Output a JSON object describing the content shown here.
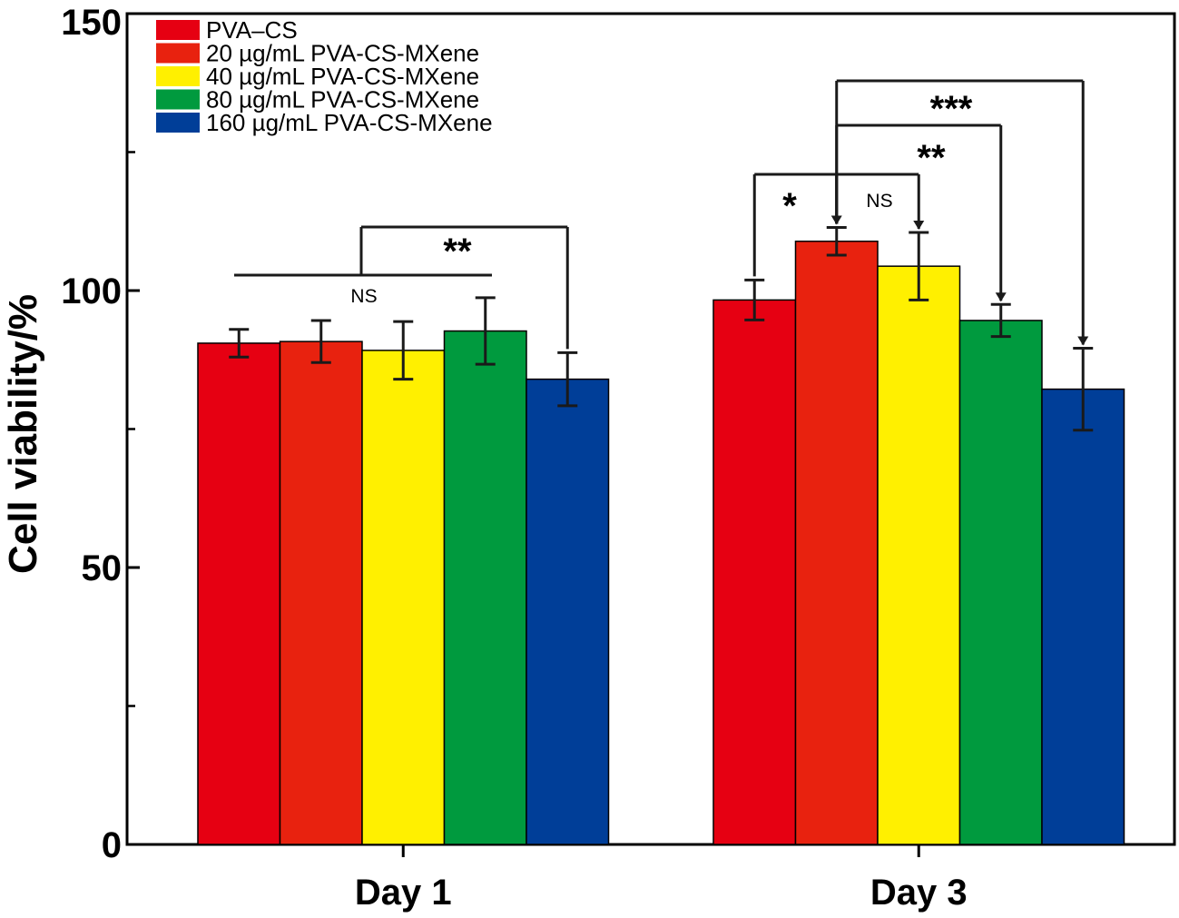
{
  "chart_data": {
    "type": "bar",
    "title": "",
    "xlabel": "",
    "ylabel": "Cell viability/%",
    "ylim": [
      0,
      150
    ],
    "yticks": [
      0,
      50,
      100,
      150
    ],
    "minor_yticks": [
      25,
      75,
      125
    ],
    "categories": [
      "Day 1",
      "Day 3"
    ],
    "series": [
      {
        "name": "PVA–CS",
        "color": "#e60012",
        "values": [
          90.5,
          98.3
        ],
        "errors": [
          2.5,
          3.6
        ]
      },
      {
        "name": "20 µg/mL  PVA-CS-MXene",
        "color": "#e8220f",
        "values": [
          90.8,
          108.9
        ],
        "errors": [
          3.8,
          2.5
        ]
      },
      {
        "name": "40 µg/mL  PVA-CS-MXene",
        "color": "#fff000",
        "values": [
          89.2,
          104.4
        ],
        "errors": [
          5.2,
          6.1
        ]
      },
      {
        "name": "80 µg/mL  PVA-CS-MXene",
        "color": "#009a3e",
        "values": [
          92.7,
          94.6
        ],
        "errors": [
          6.0,
          2.9
        ]
      },
      {
        "name": "160 µg/mL  PVA-CS-MXene",
        "color": "#003e98",
        "values": [
          84.0,
          82.2
        ],
        "errors": [
          4.8,
          7.4
        ]
      }
    ],
    "significance": [
      {
        "group": 0,
        "from": 0,
        "to": 3,
        "label": "NS",
        "kind": "line"
      },
      {
        "group": 0,
        "from": 2,
        "to": 4,
        "label": "**",
        "kind": "bracket"
      },
      {
        "group": 1,
        "from": 0,
        "to": 1,
        "label": "*",
        "kind": "bracket"
      },
      {
        "group": 1,
        "from": 1,
        "to": 2,
        "label": "NS",
        "kind": "bracket"
      },
      {
        "group": 1,
        "from": 1,
        "to": 3,
        "label": "**",
        "kind": "bracket"
      },
      {
        "group": 1,
        "from": 1,
        "to": 4,
        "label": "***",
        "kind": "bracket"
      }
    ]
  }
}
